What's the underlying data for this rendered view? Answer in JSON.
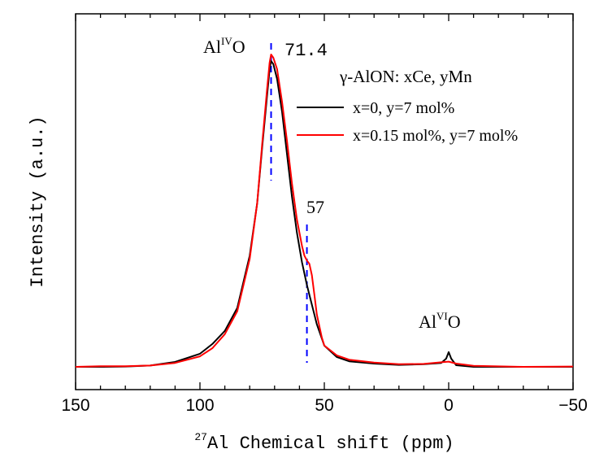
{
  "chart_data": {
    "type": "line",
    "title": "",
    "xlabel_sup": "27",
    "xlabel": "Al Chemical shift (ppm)",
    "ylabel": "Intensity (a.u.)",
    "xlim": [
      150,
      -50
    ],
    "ylim": [
      0,
      1
    ],
    "x_ticks": [
      150,
      100,
      50,
      0,
      -50
    ],
    "x_tick_labels": [
      "150",
      "100",
      "50",
      "0",
      "−50"
    ],
    "legend_title": "γ-AlON: xCe, yMn",
    "legend_position": "top-right",
    "series": [
      {
        "name": "x=0, y=7 mol%",
        "color": "#000000",
        "points": [
          [
            150,
            0.02
          ],
          [
            140,
            0.02
          ],
          [
            130,
            0.021
          ],
          [
            120,
            0.024
          ],
          [
            110,
            0.035
          ],
          [
            100,
            0.06
          ],
          [
            95,
            0.09
          ],
          [
            90,
            0.13
          ],
          [
            85,
            0.2
          ],
          [
            80,
            0.36
          ],
          [
            77,
            0.52
          ],
          [
            75,
            0.69
          ],
          [
            73,
            0.85
          ],
          [
            72,
            0.93
          ],
          [
            71.4,
            0.955
          ],
          [
            70.5,
            0.945
          ],
          [
            69,
            0.9
          ],
          [
            67,
            0.8
          ],
          [
            65,
            0.67
          ],
          [
            63,
            0.54
          ],
          [
            61,
            0.43
          ],
          [
            59,
            0.34
          ],
          [
            57,
            0.27
          ],
          [
            55,
            0.21
          ],
          [
            53,
            0.15
          ],
          [
            50,
            0.085
          ],
          [
            45,
            0.05
          ],
          [
            40,
            0.037
          ],
          [
            30,
            0.03
          ],
          [
            20,
            0.026
          ],
          [
            10,
            0.028
          ],
          [
            3,
            0.032
          ],
          [
            1,
            0.045
          ],
          [
            0,
            0.065
          ],
          [
            -1,
            0.045
          ],
          [
            -3,
            0.025
          ],
          [
            -10,
            0.02
          ],
          [
            -30,
            0.02
          ],
          [
            -50,
            0.02
          ]
        ]
      },
      {
        "name": "x=0.15 mol%, y=7 mol%",
        "color": "#ff0000",
        "points": [
          [
            150,
            0.02
          ],
          [
            140,
            0.022
          ],
          [
            130,
            0.022
          ],
          [
            120,
            0.024
          ],
          [
            110,
            0.032
          ],
          [
            100,
            0.052
          ],
          [
            95,
            0.077
          ],
          [
            90,
            0.12
          ],
          [
            85,
            0.19
          ],
          [
            80,
            0.35
          ],
          [
            77,
            0.52
          ],
          [
            75,
            0.7
          ],
          [
            73,
            0.87
          ],
          [
            72,
            0.95
          ],
          [
            71.4,
            0.975
          ],
          [
            70.5,
            0.965
          ],
          [
            69,
            0.93
          ],
          [
            67,
            0.83
          ],
          [
            65,
            0.71
          ],
          [
            63,
            0.58
          ],
          [
            61,
            0.47
          ],
          [
            59,
            0.39
          ],
          [
            58,
            0.36
          ],
          [
            57,
            0.345
          ],
          [
            56,
            0.335
          ],
          [
            55,
            0.3
          ],
          [
            54,
            0.24
          ],
          [
            53,
            0.18
          ],
          [
            51,
            0.11
          ],
          [
            50,
            0.085
          ],
          [
            45,
            0.055
          ],
          [
            40,
            0.042
          ],
          [
            30,
            0.033
          ],
          [
            20,
            0.028
          ],
          [
            10,
            0.029
          ],
          [
            3,
            0.034
          ],
          [
            0,
            0.036
          ],
          [
            -3,
            0.03
          ],
          [
            -10,
            0.023
          ],
          [
            -30,
            0.02
          ],
          [
            -50,
            0.021
          ]
        ]
      }
    ],
    "annotations": {
      "peak1_prefix": "Al",
      "peak1_sup": "IV",
      "peak1_suffix": "O",
      "peak1_value": "71.4",
      "peak2_value": "57",
      "peak3_prefix": "Al",
      "peak3_sup": "VI",
      "peak3_suffix": "O"
    },
    "reference_lines": [
      {
        "x": 71.4,
        "color": "#0000ff",
        "style": "dashed"
      },
      {
        "x": 57,
        "color": "#0000ff",
        "style": "dashed"
      }
    ]
  }
}
